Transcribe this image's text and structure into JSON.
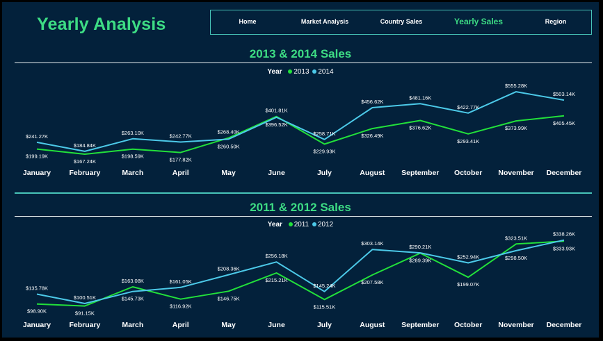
{
  "header": {
    "title": "Yearly Analysis"
  },
  "nav": {
    "items": [
      {
        "label": "Home",
        "active": false
      },
      {
        "label": "Market Analysis",
        "active": false
      },
      {
        "label": "Country Sales",
        "active": false
      },
      {
        "label": "Yearly Sales",
        "active": true
      },
      {
        "label": "Region",
        "active": false
      }
    ]
  },
  "colors": {
    "background": "#03213b",
    "accent": "#3ddc84",
    "series_green": "#22e03a",
    "series_blue": "#4cc9e8",
    "nav_border": "#47c4b8"
  },
  "chart_data": [
    {
      "type": "line",
      "title": "2013 & 2014 Sales",
      "legend_title": "Year",
      "legend_position": "top-center",
      "categories": [
        "January",
        "February",
        "March",
        "April",
        "May",
        "June",
        "July",
        "August",
        "September",
        "October",
        "November",
        "December"
      ],
      "series": [
        {
          "name": "2013",
          "color": "#22e03a",
          "values": [
            199.19,
            167.24,
            198.59,
            177.82,
            268.4,
            401.81,
            229.93,
            326.49,
            376.62,
            293.41,
            373.99,
            405.45
          ],
          "labels": [
            "$199.19K",
            "$167.24K",
            "$198.59K",
            "$177.82K",
            "$268.40K",
            "$401.81K",
            "$229.93K",
            "$326.49K",
            "$376.62K",
            "$293.41K",
            "$373.99K",
            "$405.45K"
          ]
        },
        {
          "name": "2014",
          "color": "#4cc9e8",
          "values": [
            241.27,
            184.84,
            263.1,
            242.77,
            260.5,
            396.52,
            258.71,
            456.62,
            481.16,
            422.77,
            555.28,
            503.14
          ],
          "labels": [
            "$241.27K",
            "$184.84K",
            "$263.10K",
            "$242.77K",
            "$260.50K",
            "$396.52K",
            "$258.71K",
            "$456.62K",
            "$481.16K",
            "$422.77K",
            "$555.28K",
            "$503.14K"
          ]
        }
      ],
      "grid": false
    },
    {
      "type": "line",
      "title": "2011 & 2012 Sales",
      "legend_title": "Year",
      "legend_position": "top-center",
      "categories": [
        "January",
        "February",
        "March",
        "April",
        "May",
        "June",
        "July",
        "August",
        "September",
        "October",
        "November",
        "December"
      ],
      "series": [
        {
          "name": "2011",
          "color": "#22e03a",
          "values": [
            98.9,
            91.15,
            163.08,
            116.92,
            146.75,
            215.21,
            115.51,
            207.58,
            289.39,
            199.07,
            323.51,
            333.93
          ],
          "labels": [
            "$98.90K",
            "$91.15K",
            "$163.08K",
            "$116.92K",
            "$146.75K",
            "$215.21K",
            "$115.51K",
            "$207.58K",
            "$289.39K",
            "$199.07K",
            "$323.51K",
            "$333.93K"
          ]
        },
        {
          "name": "2012",
          "color": "#4cc9e8",
          "values": [
            135.78,
            100.51,
            145.73,
            161.05,
            208.36,
            256.18,
            145.24,
            303.14,
            290.21,
            252.94,
            298.5,
            338.26
          ],
          "labels": [
            "$135.78K",
            "$100.51K",
            "$145.73K",
            "$161.05K",
            "$208.36K",
            "$256.18K",
            "$145.24K",
            "$303.14K",
            "$290.21K",
            "$252.94K",
            "$298.50K",
            "$338.26K"
          ]
        }
      ],
      "grid": false
    }
  ]
}
